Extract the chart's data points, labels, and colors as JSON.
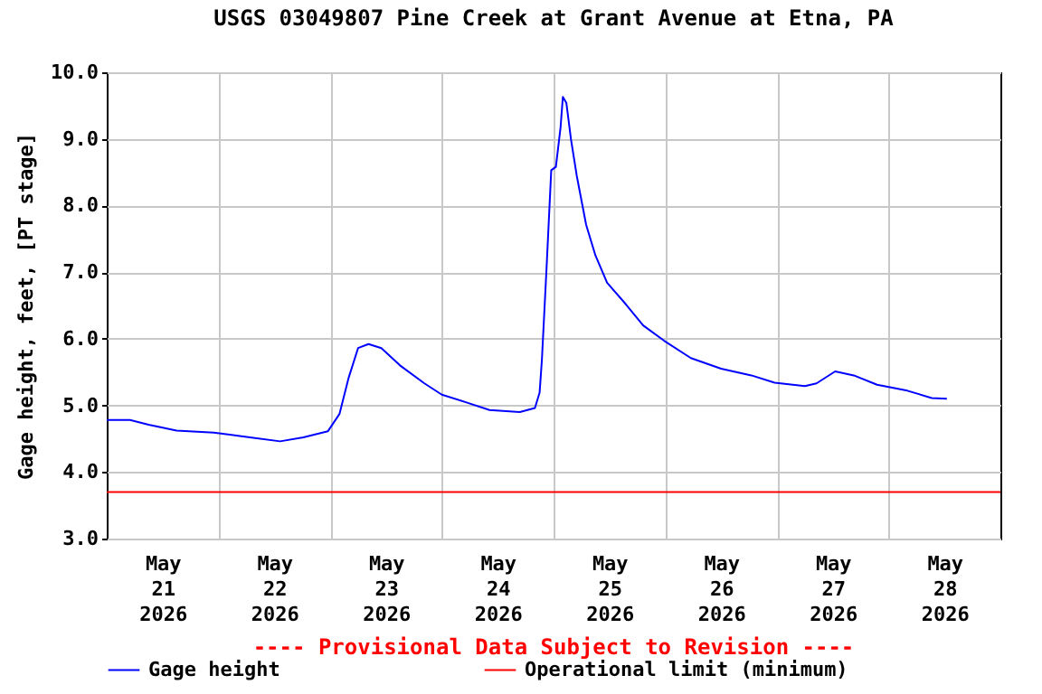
{
  "chart_data": {
    "type": "line",
    "title": "USGS 03049807 Pine Creek at Grant Avenue at Etna, PA",
    "ylabel": "Gage height, feet, [PT stage]",
    "annotations": [
      "---- Provisional Data Subject to Revision ----"
    ],
    "x": [
      "2026-05-21T00:00",
      "2026-05-21T05:00",
      "2026-05-21T09:00",
      "2026-05-21T15:00",
      "2026-05-21T23:00",
      "2026-05-22T06:45",
      "2026-05-22T13:15",
      "2026-05-22T18:15",
      "2026-05-22T23:30",
      "2026-05-23T02:00",
      "2026-05-23T04:00",
      "2026-05-23T06:00",
      "2026-05-23T08:15",
      "2026-05-23T11:00",
      "2026-05-23T15:00",
      "2026-05-23T20:15",
      "2026-05-24T00:00",
      "2026-05-24T05:00",
      "2026-05-24T10:15",
      "2026-05-24T16:45",
      "2026-05-24T20:00",
      "2026-05-24T21:00",
      "2026-05-24T21:30",
      "2026-05-24T22:30",
      "2026-05-24T23:30",
      "2026-05-25T00:30",
      "2026-05-25T01:30",
      "2026-05-25T02:00",
      "2026-05-25T02:45",
      "2026-05-25T03:45",
      "2026-05-25T05:00",
      "2026-05-25T07:00",
      "2026-05-25T09:00",
      "2026-05-25T11:30",
      "2026-05-25T15:30",
      "2026-05-25T19:15",
      "2026-05-25T23:45",
      "2026-05-26T05:30",
      "2026-05-26T12:00",
      "2026-05-26T18:30",
      "2026-05-26T23:30",
      "2026-05-27T06:00",
      "2026-05-27T08:30",
      "2026-05-27T12:30",
      "2026-05-27T16:30",
      "2026-05-27T21:30",
      "2026-05-28T04:00",
      "2026-05-28T09:15",
      "2026-05-28T12:30"
    ],
    "series": [
      {
        "name": "Gage height",
        "color": "#0000ff",
        "values": [
          4.78,
          4.78,
          4.71,
          4.62,
          4.59,
          4.52,
          4.46,
          4.52,
          4.61,
          4.87,
          5.42,
          5.86,
          5.92,
          5.86,
          5.6,
          5.33,
          5.16,
          5.05,
          4.93,
          4.9,
          4.96,
          5.19,
          5.69,
          7.07,
          8.53,
          8.58,
          9.17,
          9.63,
          9.54,
          8.99,
          8.44,
          7.71,
          7.25,
          6.84,
          6.52,
          6.2,
          5.97,
          5.71,
          5.55,
          5.45,
          5.34,
          5.29,
          5.33,
          5.51,
          5.45,
          5.31,
          5.22,
          5.11,
          5.1
        ]
      }
    ],
    "ref_lines": [
      {
        "axis": "y",
        "value": 3.7,
        "label": "Operational limit (minimum)",
        "color": "#ff0000"
      }
    ],
    "xlim": [
      "2026-05-21T00:00",
      "2026-05-29T00:00"
    ],
    "xticks": [
      {
        "value": "2026-05-21T12:00",
        "label": "May 21 2026"
      },
      {
        "value": "2026-05-22T00:00",
        "label": null
      },
      {
        "value": "2026-05-22T12:00",
        "label": "May 22 2026"
      },
      {
        "value": "2026-05-23T00:00",
        "label": null
      },
      {
        "value": "2026-05-23T12:00",
        "label": "May 23 2026"
      },
      {
        "value": "2026-05-24T00:00",
        "label": null
      },
      {
        "value": "2026-05-24T12:00",
        "label": "May 24 2026"
      },
      {
        "value": "2026-05-25T00:00",
        "label": null
      },
      {
        "value": "2026-05-25T12:00",
        "label": "May 25 2026"
      },
      {
        "value": "2026-05-26T00:00",
        "label": null
      },
      {
        "value": "2026-05-26T12:00",
        "label": "May 26 2026"
      },
      {
        "value": "2026-05-27T00:00",
        "label": null
      },
      {
        "value": "2026-05-27T12:00",
        "label": "May 27 2026"
      },
      {
        "value": "2026-05-28T00:00",
        "label": null
      },
      {
        "value": "2026-05-28T12:00",
        "label": "May 28 2026"
      }
    ],
    "ylim": [
      3,
      10
    ],
    "yticks": [
      {
        "value": 3,
        "label": "3.0"
      },
      {
        "value": 4,
        "label": "4.0"
      },
      {
        "value": 5,
        "label": "5.0"
      },
      {
        "value": 6,
        "label": "6.0"
      },
      {
        "value": 7,
        "label": "7.0"
      },
      {
        "value": 8,
        "label": "8.0"
      },
      {
        "value": 9,
        "label": "9.0"
      },
      {
        "value": 10,
        "label": "10.0"
      }
    ],
    "grid": true,
    "legend": "bottom",
    "line_style": "solid",
    "marker": "none"
  }
}
